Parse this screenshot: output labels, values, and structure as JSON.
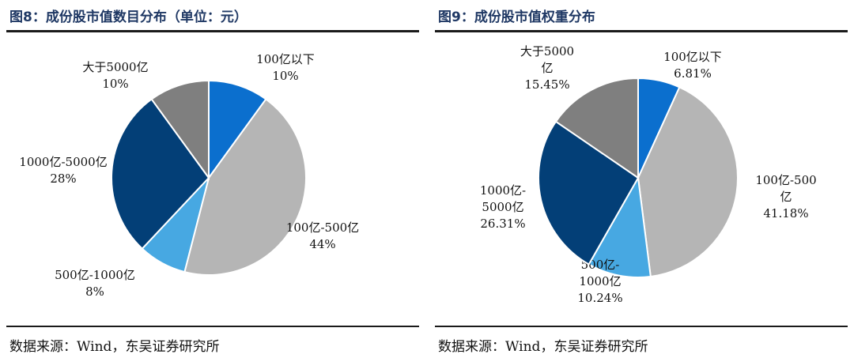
{
  "chart_data": [
    {
      "type": "pie",
      "title": "图8：成份股市值数目分布（单位：元）",
      "slices": [
        {
          "name": "100亿以下",
          "value": 10,
          "value_label": "10%",
          "color": "#0b6fce",
          "label_lines": [
            "100亿以下",
            "10%"
          ]
        },
        {
          "name": "100亿-500亿",
          "value": 44,
          "value_label": "44%",
          "color": "#b5b5b5",
          "label_lines": [
            "100亿-500亿",
            "44%"
          ]
        },
        {
          "name": "500亿-1000亿",
          "value": 8,
          "value_label": "8%",
          "color": "#47a8e2",
          "label_lines": [
            "500亿-1000亿",
            "8%"
          ]
        },
        {
          "name": "1000亿-5000亿",
          "value": 28,
          "value_label": "28%",
          "color": "#033f77",
          "label_lines": [
            "1000亿-5000亿",
            "28%"
          ]
        },
        {
          "name": "大于5000亿",
          "value": 10,
          "value_label": "10%",
          "color": "#7f7f7f",
          "label_lines": [
            "大于5000亿",
            "10%"
          ]
        }
      ],
      "source": "数据来源：Wind，东吴证券研究所"
    },
    {
      "type": "pie",
      "title": "图9：成份股市值权重分布",
      "slices": [
        {
          "name": "100亿以下",
          "value": 6.81,
          "value_label": "6.81%",
          "color": "#0b6fce",
          "label_lines": [
            "100亿以下",
            "6.81%"
          ]
        },
        {
          "name": "100亿-500亿",
          "value": 41.18,
          "value_label": "41.18%",
          "color": "#b5b5b5",
          "label_lines": [
            "100亿-500",
            "亿",
            "41.18%"
          ]
        },
        {
          "name": "500亿-1000亿",
          "value": 10.24,
          "value_label": "10.24%",
          "color": "#47a8e2",
          "label_lines": [
            "500亿-",
            "1000亿",
            "10.24%"
          ]
        },
        {
          "name": "1000亿-5000亿",
          "value": 26.31,
          "value_label": "26.31%",
          "color": "#033f77",
          "label_lines": [
            "1000亿-",
            "5000亿",
            "26.31%"
          ]
        },
        {
          "name": "大于5000亿",
          "value": 15.45,
          "value_label": "15.45%",
          "color": "#7f7f7f",
          "label_lines": [
            "大于5000",
            "亿",
            "15.45%"
          ]
        }
      ],
      "source": "数据来源：Wind，东吴证券研究所"
    }
  ]
}
